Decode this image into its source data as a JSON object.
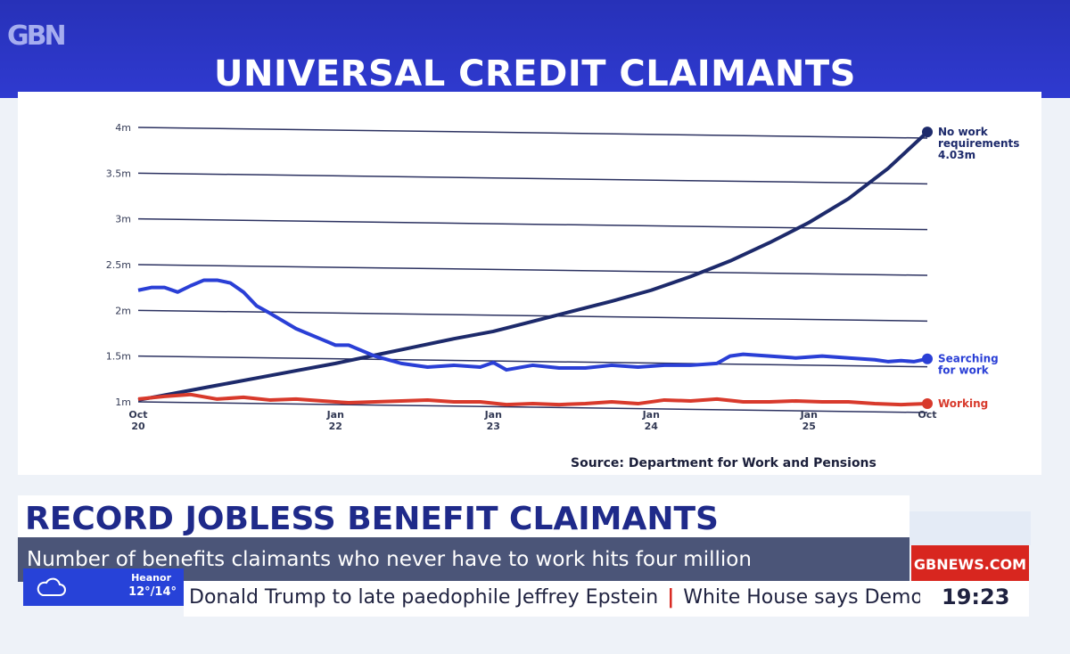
{
  "channel": {
    "logo": "GBN",
    "brand_label": "GBNEWS.COM"
  },
  "title": "UNIVERSAL CREDIT CLAIMANTS",
  "source": "Source: Department for Work and Pensions",
  "headline": "RECORD JOBLESS BENEFIT CLAIMANTS",
  "subline": "Number of benefits claimants who never have to work hits four million",
  "weather": {
    "town": "Heanor",
    "temp": "12°/14°",
    "icon": "cloud-icon"
  },
  "ticker": {
    "part1": "Donald Trump to late paedophile Jeffrey Epstein",
    "separator": "|",
    "part2": "White House says Democr"
  },
  "clock": "19:23",
  "colors": {
    "no_work": "#1d2a6b",
    "searching": "#2a3fd6",
    "working": "#d83a2c",
    "brand": "#d8261f",
    "bar": "#2f3ad0"
  },
  "chart_data": {
    "type": "line",
    "title": "UNIVERSAL CREDIT CLAIMANTS",
    "ylim": [
      1,
      4
    ],
    "y_ticks": [
      {
        "value": 1,
        "label": "1m"
      },
      {
        "value": 1.5,
        "label": "1.5m"
      },
      {
        "value": 2,
        "label": "2m"
      },
      {
        "value": 2.5,
        "label": "2.5m"
      },
      {
        "value": 3,
        "label": "3m"
      },
      {
        "value": 3.5,
        "label": "3.5m"
      },
      {
        "value": 4,
        "label": "4m"
      }
    ],
    "x_ticks": [
      {
        "month": 0,
        "line1": "Oct",
        "line2": "20"
      },
      {
        "month": 15,
        "line1": "Jan",
        "line2": "22"
      },
      {
        "month": 27,
        "line1": "Jan",
        "line2": "23"
      },
      {
        "month": 39,
        "line1": "Jan",
        "line2": "24"
      },
      {
        "month": 51,
        "line1": "Jan",
        "line2": "25"
      },
      {
        "month": 60,
        "line1": "Oct",
        "line2": ""
      }
    ],
    "series": [
      {
        "name": "No work requirements",
        "label_lines": [
          "No work",
          "requirements",
          "4.03m"
        ],
        "color": "#1d2a6b",
        "x": [
          0,
          3,
          6,
          9,
          12,
          15,
          18,
          21,
          24,
          27,
          30,
          33,
          36,
          39,
          42,
          45,
          48,
          51,
          54,
          57,
          60
        ],
        "values": [
          1.02,
          1.1,
          1.18,
          1.26,
          1.34,
          1.42,
          1.51,
          1.6,
          1.69,
          1.77,
          1.88,
          1.99,
          2.1,
          2.22,
          2.37,
          2.54,
          2.74,
          2.96,
          3.22,
          3.55,
          3.95
        ]
      },
      {
        "name": "Searching for work",
        "label_lines": [
          "Searching",
          "for work"
        ],
        "color": "#2a3fd6",
        "x": [
          0,
          1,
          2,
          3,
          4,
          5,
          6,
          7,
          8,
          9,
          10,
          12,
          14,
          15,
          16,
          18,
          20,
          22,
          24,
          26,
          27,
          28,
          30,
          32,
          34,
          36,
          38,
          40,
          42,
          44,
          45,
          46,
          48,
          50,
          52,
          54,
          56,
          57,
          58,
          59,
          60
        ],
        "values": [
          2.22,
          2.25,
          2.25,
          2.2,
          2.27,
          2.33,
          2.33,
          2.3,
          2.2,
          2.05,
          1.97,
          1.8,
          1.68,
          1.62,
          1.62,
          1.5,
          1.42,
          1.38,
          1.4,
          1.38,
          1.43,
          1.35,
          1.4,
          1.37,
          1.37,
          1.4,
          1.38,
          1.4,
          1.4,
          1.42,
          1.5,
          1.52,
          1.5,
          1.48,
          1.5,
          1.48,
          1.46,
          1.44,
          1.45,
          1.44,
          1.47
        ]
      },
      {
        "name": "Working",
        "label_lines": [
          "Working"
        ],
        "color": "#d83a2c",
        "x": [
          0,
          2,
          4,
          6,
          8,
          10,
          12,
          14,
          16,
          18,
          20,
          22,
          24,
          26,
          28,
          30,
          32,
          34,
          36,
          38,
          40,
          42,
          44,
          46,
          48,
          50,
          52,
          54,
          56,
          58,
          60
        ],
        "values": [
          1.03,
          1.06,
          1.08,
          1.03,
          1.05,
          1.02,
          1.03,
          1.01,
          0.99,
          1.0,
          1.01,
          1.02,
          1.0,
          1.0,
          0.97,
          0.98,
          0.97,
          0.98,
          1.0,
          0.98,
          1.02,
          1.01,
          1.03,
          1.0,
          1.0,
          1.01,
          1.0,
          1.0,
          0.98,
          0.97,
          0.98
        ]
      }
    ]
  }
}
